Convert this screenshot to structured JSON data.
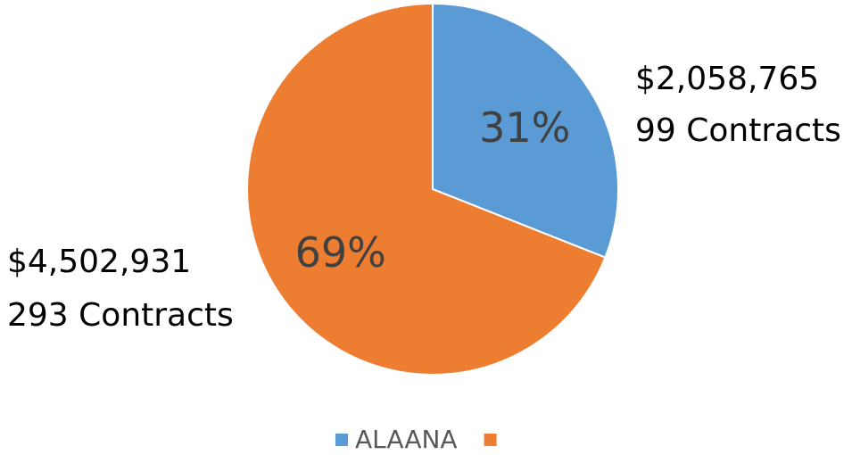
{
  "chart_data": {
    "type": "pie",
    "categories": [
      "ALAANA",
      null
    ],
    "values": [
      31,
      69
    ],
    "value_labels": [
      "31%",
      "69%"
    ],
    "colors": [
      "#5b9bd5",
      "#ed7d31"
    ],
    "annotations": [
      "$2,058,765",
      "99 Contracts",
      "$4,502,931",
      "293 Contracts"
    ]
  }
}
